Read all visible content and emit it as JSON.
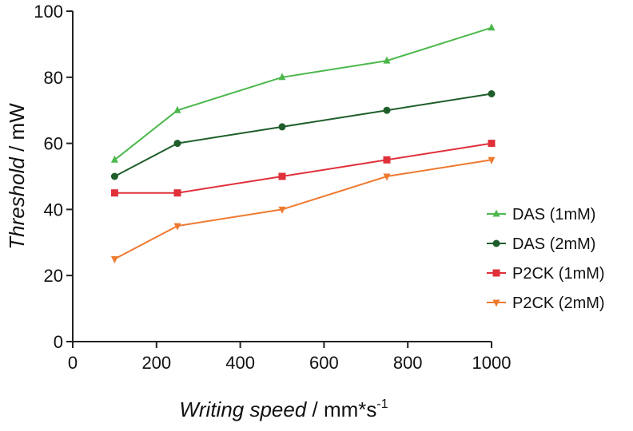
{
  "chart_data": {
    "type": "line",
    "xlabel": {
      "italic": "Writing speed",
      "rest": " / mm*s",
      "sup": "-1"
    },
    "ylabel": {
      "italic": "Threshold",
      "rest": " / mW"
    },
    "xlim": [
      0,
      1000
    ],
    "ylim": [
      0,
      100
    ],
    "x_ticks": [
      0,
      200,
      400,
      600,
      800,
      1000
    ],
    "y_ticks": [
      0,
      20,
      40,
      60,
      80,
      100
    ],
    "grid": false,
    "legend_position": "right",
    "x": [
      100,
      250,
      500,
      750,
      1000
    ],
    "series": [
      {
        "name": "DAS (1mM)",
        "color": "#4cb84c",
        "marker": "triangle-up",
        "values": [
          55,
          70,
          80,
          85,
          95
        ]
      },
      {
        "name": "DAS (2mM)",
        "color": "#1f5e2a",
        "marker": "circle",
        "values": [
          50,
          60,
          65,
          70,
          75
        ]
      },
      {
        "name": "P2CK (1mM)",
        "color": "#e0303a",
        "marker": "square",
        "values": [
          45,
          45,
          50,
          55,
          60
        ]
      },
      {
        "name": "P2CK (2mM)",
        "color": "#ee7a30",
        "marker": "triangle-down",
        "values": [
          25,
          35,
          40,
          50,
          55
        ]
      }
    ]
  }
}
